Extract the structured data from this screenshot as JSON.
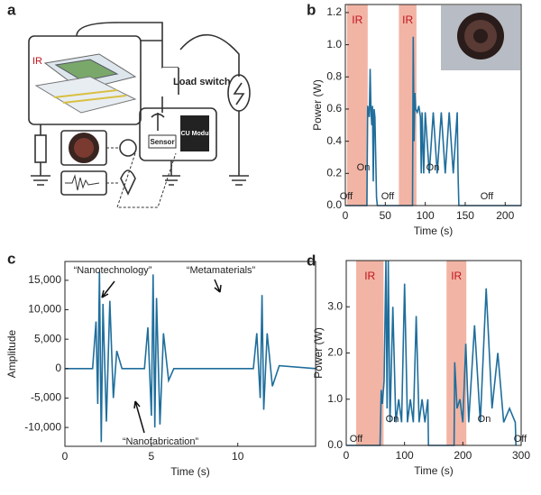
{
  "panel_labels": [
    "a",
    "b",
    "c",
    "d"
  ],
  "diagram": {
    "ir": "IR",
    "load_switch": "Load switch",
    "mcu": "MCU Module",
    "sensor": "Sensor"
  },
  "chart_data": [
    {
      "type": "line",
      "ylabel": "Power (W)",
      "xlabel": "Time (s)",
      "color": "#1f6e9c",
      "xlim": [
        0,
        220
      ],
      "ylim": [
        0,
        1.25
      ],
      "xticks": [
        0,
        50,
        100,
        150,
        200
      ],
      "yticks": [
        {
          "value": 0,
          "label": "0.0"
        },
        0.2,
        0.4,
        0.6,
        0.8,
        {
          "value": 1,
          "label": "1.0"
        },
        1.2
      ],
      "ir_label": "IR",
      "ir_spans": [
        [
          2,
          28
        ],
        [
          67,
          89
        ]
      ],
      "annotations": [
        "Off",
        "On",
        "Off",
        "On",
        "Off"
      ],
      "x": [
        0,
        27,
        27.5,
        28,
        30,
        31,
        32,
        33,
        34,
        35,
        36,
        37,
        38,
        39,
        40,
        62,
        84,
        85,
        86,
        87,
        88,
        90,
        92,
        94,
        95,
        96,
        98,
        100,
        105,
        110,
        115,
        120,
        125,
        130,
        135,
        140,
        141,
        142,
        220
      ],
      "values": [
        0,
        0,
        0.35,
        0.62,
        0.55,
        0.85,
        0.6,
        0.5,
        0.62,
        0.15,
        0.6,
        0.55,
        0.3,
        0.05,
        0,
        0,
        0,
        1.05,
        0.4,
        0.7,
        0.6,
        0.58,
        0.62,
        0.55,
        0.2,
        0.58,
        0.2,
        0.58,
        0.2,
        0.58,
        0.2,
        0.58,
        0.2,
        0.58,
        0.2,
        0.58,
        0.2,
        0,
        0
      ]
    },
    {
      "type": "line",
      "ylabel": "Amplitude",
      "xlabel": "Time (s)",
      "color": "#1f6e9c",
      "xlim": [
        0,
        14.5
      ],
      "ylim": [
        -13200,
        18200
      ],
      "xticks": [
        0,
        5,
        10
      ],
      "yticks": [
        {
          "value": -10000,
          "label": "-10,000"
        },
        {
          "value": -5000,
          "label": "-5,000"
        },
        0,
        {
          "value": 5000,
          "label": "5,000"
        },
        {
          "value": 10000,
          "label": "10,000"
        },
        {
          "value": 15000,
          "label": "15,000"
        }
      ],
      "annotations": [
        "“Nanotechnology”",
        "“Nanofabrication”",
        "“Metamaterials”"
      ],
      "x": [
        0,
        1.6,
        1.8,
        1.9,
        2.0,
        2.1,
        2.2,
        2.4,
        2.6,
        2.8,
        3.0,
        3.3,
        4.6,
        4.8,
        5.0,
        5.1,
        5.2,
        5.3,
        5.5,
        5.7,
        6.0,
        6.3,
        10.9,
        11.1,
        11.3,
        11.4,
        11.5,
        11.7,
        12.0,
        12.4,
        14.5
      ],
      "values": [
        0,
        0,
        8000,
        -6000,
        16500,
        -12500,
        11000,
        -9000,
        11500,
        -5000,
        3000,
        0,
        0,
        7000,
        -8000,
        16000,
        -10000,
        12000,
        -9500,
        6000,
        -2000,
        0,
        0,
        6000,
        -5000,
        12500,
        -7000,
        6000,
        -3000,
        500,
        0
      ]
    },
    {
      "type": "line",
      "ylabel": "Power (W)",
      "xlabel": "Time (s)",
      "color": "#1f6e9c",
      "xlim": [
        0,
        300
      ],
      "ylim": [
        0,
        4
      ],
      "xticks": [
        0,
        100,
        200,
        300
      ],
      "yticks": [
        {
          "value": 0,
          "label": "0.0"
        },
        {
          "value": 1,
          "label": "1.0"
        },
        {
          "value": 2,
          "label": "2.0"
        },
        {
          "value": 3,
          "label": "3.0"
        }
      ],
      "ir_label": "IR",
      "ir_spans": [
        [
          17,
          64
        ],
        [
          172,
          206
        ]
      ],
      "annotations": [
        "Off",
        "On",
        "On",
        "Off"
      ],
      "x": [
        0,
        58,
        60,
        62,
        65,
        68,
        70,
        72,
        75,
        80,
        85,
        90,
        95,
        100,
        105,
        110,
        115,
        120,
        125,
        130,
        135,
        140,
        141,
        185,
        186,
        190,
        195,
        200,
        205,
        210,
        220,
        230,
        240,
        250,
        260,
        270,
        280,
        290,
        291
      ],
      "values": [
        0,
        0,
        1.2,
        0.9,
        1.4,
        4.0,
        0.8,
        4.0,
        0.5,
        3.0,
        0.5,
        1.0,
        0.5,
        3.5,
        0.5,
        1.0,
        0.5,
        2.8,
        0.5,
        1.0,
        0.5,
        1.0,
        0,
        0,
        1.8,
        0.8,
        1.0,
        0.5,
        2.2,
        0.5,
        2.6,
        0.5,
        3.4,
        0.8,
        2.0,
        0.5,
        0.8,
        0.5,
        0
      ]
    }
  ]
}
